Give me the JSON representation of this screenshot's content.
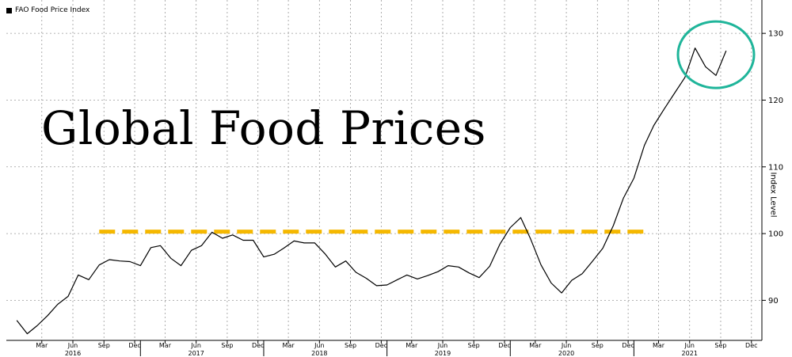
{
  "chart_data": {
    "type": "line",
    "legend": "FAO Food Price Index",
    "annotation_title": "Global Food Prices",
    "ylabel": "Index Level",
    "ylim": [
      84,
      135
    ],
    "yticks": [
      90,
      100,
      110,
      120,
      130
    ],
    "xlim": [
      "2015-12-01",
      "2022-01-15"
    ],
    "month_ticks": [
      "Mar",
      "Jun",
      "Sep",
      "Dec",
      "Mar",
      "Jun",
      "Sep",
      "Dec",
      "Mar",
      "Jun",
      "Sep",
      "Dec",
      "Mar",
      "Jun",
      "Sep",
      "Dec",
      "Mar",
      "Jun",
      "Sep",
      "Dec",
      "Mar",
      "Jun",
      "Sep",
      "Dec"
    ],
    "year_labels": [
      "2016",
      "2017",
      "2018",
      "2019",
      "2020",
      "2021"
    ],
    "series": [
      {
        "values": [
          [
            "2016-01-01",
            87.0
          ],
          [
            "2016-02-01",
            85.0
          ],
          [
            "2016-03-01",
            86.2
          ],
          [
            "2016-04-01",
            87.7
          ],
          [
            "2016-05-01",
            89.4
          ],
          [
            "2016-06-01",
            90.6
          ],
          [
            "2016-07-01",
            93.8
          ],
          [
            "2016-08-01",
            93.1
          ],
          [
            "2016-09-01",
            95.3
          ],
          [
            "2016-10-01",
            96.1
          ],
          [
            "2016-11-01",
            95.9
          ],
          [
            "2016-12-01",
            95.8
          ],
          [
            "2017-01-01",
            95.2
          ],
          [
            "2017-02-01",
            97.9
          ],
          [
            "2017-03-01",
            98.2
          ],
          [
            "2017-04-01",
            96.3
          ],
          [
            "2017-05-01",
            95.2
          ],
          [
            "2017-06-01",
            97.5
          ],
          [
            "2017-07-01",
            98.2
          ],
          [
            "2017-08-01",
            100.2
          ],
          [
            "2017-09-01",
            99.3
          ],
          [
            "2017-10-01",
            99.8
          ],
          [
            "2017-11-01",
            99.0
          ],
          [
            "2017-12-01",
            99.0
          ],
          [
            "2018-01-01",
            96.5
          ],
          [
            "2018-02-01",
            96.9
          ],
          [
            "2018-03-01",
            97.8
          ],
          [
            "2018-04-01",
            98.9
          ],
          [
            "2018-05-01",
            98.6
          ],
          [
            "2018-06-01",
            98.6
          ],
          [
            "2018-07-01",
            97.0
          ],
          [
            "2018-08-01",
            95.0
          ],
          [
            "2018-09-01",
            95.9
          ],
          [
            "2018-10-01",
            94.2
          ],
          [
            "2018-11-01",
            93.3
          ],
          [
            "2018-12-01",
            92.2
          ],
          [
            "2019-01-01",
            92.3
          ],
          [
            "2019-02-01",
            93.1
          ],
          [
            "2019-03-01",
            93.8
          ],
          [
            "2019-04-01",
            93.2
          ],
          [
            "2019-05-01",
            93.7
          ],
          [
            "2019-06-01",
            94.3
          ],
          [
            "2019-07-01",
            95.2
          ],
          [
            "2019-08-01",
            95.0
          ],
          [
            "2019-09-01",
            94.1
          ],
          [
            "2019-10-01",
            93.4
          ],
          [
            "2019-11-01",
            95.1
          ],
          [
            "2019-12-01",
            98.4
          ],
          [
            "2020-01-01",
            100.9
          ],
          [
            "2020-02-01",
            102.4
          ],
          [
            "2020-03-01",
            99.2
          ],
          [
            "2020-04-01",
            95.3
          ],
          [
            "2020-05-01",
            92.6
          ],
          [
            "2020-06-01",
            91.1
          ],
          [
            "2020-07-01",
            93.0
          ],
          [
            "2020-08-01",
            94.0
          ],
          [
            "2020-09-01",
            95.9
          ],
          [
            "2020-10-01",
            97.8
          ],
          [
            "2020-11-01",
            101.2
          ],
          [
            "2020-12-01",
            105.3
          ],
          [
            "2021-01-01",
            108.3
          ],
          [
            "2021-02-01",
            113.2
          ],
          [
            "2021-03-01",
            116.2
          ],
          [
            "2021-04-01",
            118.7
          ],
          [
            "2021-05-01",
            121.0
          ],
          [
            "2021-06-01",
            123.4
          ],
          [
            "2021-07-01",
            127.8
          ],
          [
            "2021-08-01",
            125.0
          ],
          [
            "2021-09-01",
            123.7
          ],
          [
            "2021-10-01",
            127.4
          ]
        ]
      }
    ],
    "reference_line": {
      "y": 100.3,
      "from": "2016-09-01",
      "to": "2021-02-01",
      "color": "#f5b800"
    },
    "highlight_circle": {
      "center": [
        "2021-09-01",
        126.8
      ],
      "color": "#1fb59a"
    },
    "colors": {
      "line": "#000000",
      "grid": "#9a9a9a",
      "axis": "#000000"
    },
    "grid": true
  }
}
